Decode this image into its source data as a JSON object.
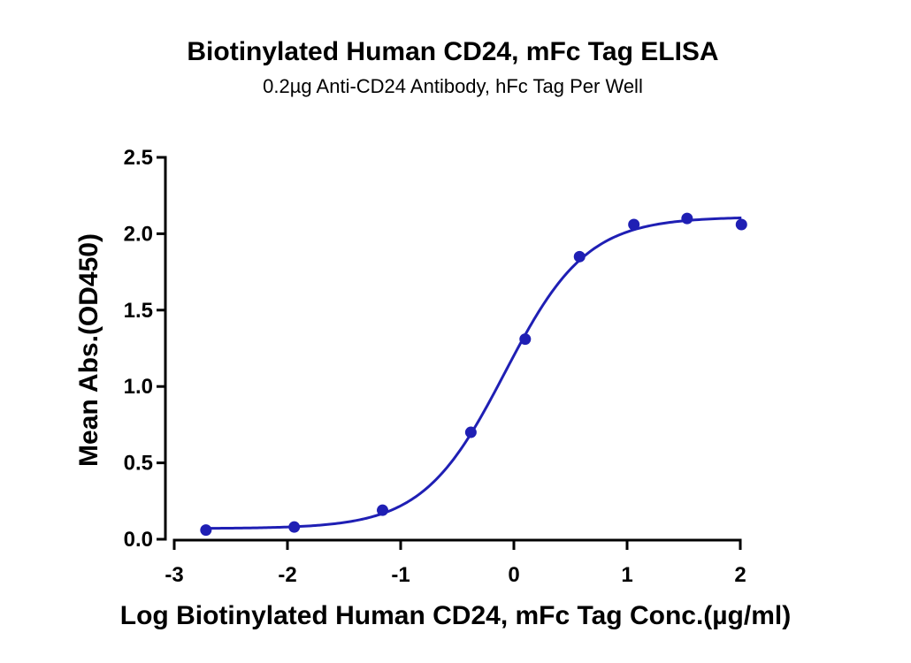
{
  "chart_data": {
    "type": "scatter",
    "title": "Biotinylated Human CD24, mFc Tag ELISA",
    "subtitle": "0.2µg Anti-CD24 Antibody, hFc Tag Per Well",
    "xlabel": "Log Biotinylated Human CD24, mFc Tag Conc.(µg/ml)",
    "ylabel": "Mean Abs.(OD450)",
    "xlim": [
      -3,
      2
    ],
    "ylim": [
      0,
      2.5
    ],
    "x_ticks": [
      -3,
      -2,
      -1,
      0,
      1,
      2
    ],
    "x_tick_labels": [
      "-3",
      "-2",
      "-1",
      "0",
      "1",
      "2"
    ],
    "y_ticks": [
      0.0,
      0.5,
      1.0,
      1.5,
      2.0,
      2.5
    ],
    "y_tick_labels": [
      "0.0",
      "0.5",
      "1.0",
      "1.5",
      "2.0",
      "2.5"
    ],
    "grid": false,
    "legend": false,
    "color": "#1f1fb4",
    "series": [
      {
        "x": [
          -2.72,
          -1.94,
          -1.16,
          -0.38,
          0.1,
          0.58,
          1.06,
          1.53,
          2.01
        ],
        "y": [
          0.06,
          0.08,
          0.19,
          0.7,
          1.31,
          1.85,
          2.06,
          2.1,
          2.06
        ]
      }
    ],
    "fit_curve": {
      "model": "4PL",
      "bottom": 0.07,
      "top": 2.11,
      "log_ec50": -0.08,
      "hill_slope": 1.2
    }
  }
}
